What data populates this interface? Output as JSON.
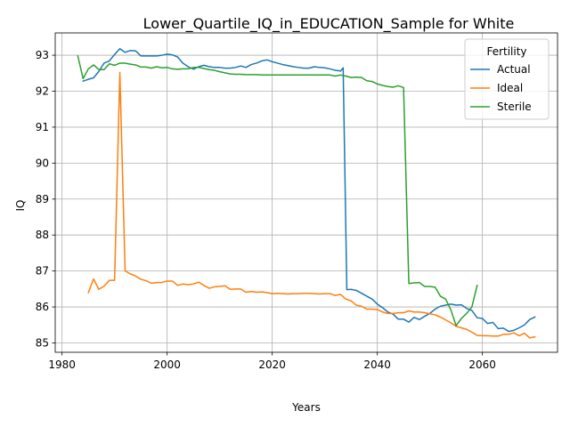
{
  "chart_data": {
    "type": "line",
    "title": "Lower_Quartile_IQ_in_EDUCATION_Sample for White",
    "xlabel": "Years",
    "ylabel": "IQ",
    "xlim": [
      1978.7,
      2074.3
    ],
    "ylim": [
      84.74,
      93.62
    ],
    "xticks": [
      1980,
      2000,
      2020,
      2040,
      2060
    ],
    "yticks": [
      85,
      86,
      87,
      88,
      89,
      90,
      91,
      92,
      93
    ],
    "grid": true,
    "legend": {
      "title": "Fertility",
      "placement": "top-right"
    },
    "series": [
      {
        "name": "Actual",
        "color": "#1f77b4",
        "points": [
          [
            1984,
            92.28
          ],
          [
            1985,
            92.33
          ],
          [
            1986,
            92.37
          ],
          [
            1987,
            92.55
          ],
          [
            1988,
            92.78
          ],
          [
            1989,
            92.84
          ],
          [
            1990,
            93.02
          ],
          [
            1991,
            93.18
          ],
          [
            1992,
            93.08
          ],
          [
            1993,
            93.13
          ],
          [
            1994,
            93.12
          ],
          [
            1995,
            92.98
          ],
          [
            1996,
            92.98
          ],
          [
            1997,
            92.98
          ],
          [
            1998,
            92.98
          ],
          [
            1999,
            93.0
          ],
          [
            2000,
            93.03
          ],
          [
            2001,
            93.01
          ],
          [
            2002,
            92.95
          ],
          [
            2003,
            92.78
          ],
          [
            2004,
            92.68
          ],
          [
            2005,
            92.61
          ],
          [
            2006,
            92.68
          ],
          [
            2007,
            92.72
          ],
          [
            2008,
            92.68
          ],
          [
            2009,
            92.66
          ],
          [
            2010,
            92.66
          ],
          [
            2011,
            92.64
          ],
          [
            2012,
            92.64
          ],
          [
            2013,
            92.66
          ],
          [
            2014,
            92.7
          ],
          [
            2015,
            92.66
          ],
          [
            2016,
            92.74
          ],
          [
            2017,
            92.78
          ],
          [
            2018,
            92.84
          ],
          [
            2019,
            92.87
          ],
          [
            2020,
            92.82
          ],
          [
            2021,
            92.78
          ],
          [
            2022,
            92.74
          ],
          [
            2023,
            92.71
          ],
          [
            2024,
            92.68
          ],
          [
            2025,
            92.66
          ],
          [
            2026,
            92.64
          ],
          [
            2027,
            92.64
          ],
          [
            2028,
            92.68
          ],
          [
            2029,
            92.66
          ],
          [
            2030,
            92.65
          ],
          [
            2031,
            92.62
          ],
          [
            2032,
            92.58
          ],
          [
            2033,
            92.56
          ],
          [
            2033.5,
            92.65
          ],
          [
            2034.2,
            86.48
          ],
          [
            2035,
            86.49
          ],
          [
            2036,
            86.46
          ],
          [
            2037,
            86.38
          ],
          [
            2038,
            86.3
          ],
          [
            2039,
            86.22
          ],
          [
            2040,
            86.08
          ],
          [
            2041,
            85.98
          ],
          [
            2042,
            85.86
          ],
          [
            2043,
            85.8
          ],
          [
            2044,
            85.66
          ],
          [
            2045,
            85.66
          ],
          [
            2046,
            85.58
          ],
          [
            2047,
            85.71
          ],
          [
            2048,
            85.65
          ],
          [
            2049,
            85.74
          ],
          [
            2050,
            85.82
          ],
          [
            2051,
            85.94
          ],
          [
            2052,
            86.02
          ],
          [
            2053,
            86.05
          ],
          [
            2054,
            86.08
          ],
          [
            2055,
            86.05
          ],
          [
            2056,
            86.06
          ],
          [
            2057,
            85.96
          ],
          [
            2058,
            85.9
          ],
          [
            2059,
            85.7
          ],
          [
            2060,
            85.68
          ],
          [
            2061,
            85.54
          ],
          [
            2062,
            85.57
          ],
          [
            2063,
            85.4
          ],
          [
            2064,
            85.41
          ],
          [
            2065,
            85.32
          ],
          [
            2066,
            85.35
          ],
          [
            2067,
            85.42
          ],
          [
            2068,
            85.5
          ],
          [
            2069,
            85.65
          ],
          [
            2070,
            85.72
          ]
        ]
      },
      {
        "name": "Ideal",
        "color": "#ff7f0e",
        "points": [
          [
            1985,
            86.4
          ],
          [
            1986,
            86.78
          ],
          [
            1987,
            86.49
          ],
          [
            1988,
            86.58
          ],
          [
            1989,
            86.74
          ],
          [
            1990,
            86.74
          ],
          [
            1991,
            92.52
          ],
          [
            1992,
            87.0
          ],
          [
            1993,
            86.92
          ],
          [
            1994,
            86.86
          ],
          [
            1995,
            86.77
          ],
          [
            1996,
            86.73
          ],
          [
            1997,
            86.66
          ],
          [
            1998,
            86.68
          ],
          [
            1999,
            86.68
          ],
          [
            2000,
            86.72
          ],
          [
            2001,
            86.72
          ],
          [
            2002,
            86.6
          ],
          [
            2003,
            86.64
          ],
          [
            2004,
            86.62
          ],
          [
            2005,
            86.64
          ],
          [
            2006,
            86.69
          ],
          [
            2007,
            86.6
          ],
          [
            2008,
            86.52
          ],
          [
            2009,
            86.56
          ],
          [
            2010,
            86.57
          ],
          [
            2011,
            86.59
          ],
          [
            2012,
            86.49
          ],
          [
            2013,
            86.5
          ],
          [
            2014,
            86.5
          ],
          [
            2015,
            86.41
          ],
          [
            2016,
            86.43
          ],
          [
            2017,
            86.41
          ],
          [
            2018,
            86.42
          ],
          [
            2019,
            86.4
          ],
          [
            2020,
            86.37
          ],
          [
            2021,
            86.38
          ],
          [
            2022,
            86.37
          ],
          [
            2023,
            86.36
          ],
          [
            2024,
            86.37
          ],
          [
            2025,
            86.37
          ],
          [
            2026,
            86.38
          ],
          [
            2027,
            86.38
          ],
          [
            2028,
            86.37
          ],
          [
            2029,
            86.36
          ],
          [
            2030,
            86.37
          ],
          [
            2031,
            86.37
          ],
          [
            2032,
            86.32
          ],
          [
            2033,
            86.35
          ],
          [
            2034,
            86.22
          ],
          [
            2035,
            86.17
          ],
          [
            2036,
            86.05
          ],
          [
            2037,
            86.02
          ],
          [
            2038,
            85.94
          ],
          [
            2039,
            85.94
          ],
          [
            2040,
            85.93
          ],
          [
            2041,
            85.86
          ],
          [
            2042,
            85.82
          ],
          [
            2043,
            85.82
          ],
          [
            2044,
            85.84
          ],
          [
            2045,
            85.84
          ],
          [
            2046,
            85.89
          ],
          [
            2047,
            85.86
          ],
          [
            2048,
            85.86
          ],
          [
            2049,
            85.84
          ],
          [
            2050,
            85.81
          ],
          [
            2051,
            85.78
          ],
          [
            2052,
            85.72
          ],
          [
            2053,
            85.64
          ],
          [
            2054,
            85.56
          ],
          [
            2055,
            85.46
          ],
          [
            2056,
            85.42
          ],
          [
            2057,
            85.38
          ],
          [
            2058,
            85.3
          ],
          [
            2059,
            85.21
          ],
          [
            2060,
            85.2
          ],
          [
            2061,
            85.2
          ],
          [
            2062,
            85.19
          ],
          [
            2063,
            85.19
          ],
          [
            2064,
            85.24
          ],
          [
            2065,
            85.24
          ],
          [
            2066,
            85.28
          ],
          [
            2067,
            85.2
          ],
          [
            2068,
            85.27
          ],
          [
            2069,
            85.14
          ],
          [
            2070,
            85.17
          ]
        ]
      },
      {
        "name": "Sterile",
        "color": "#2ca02c",
        "points": [
          [
            1983,
            92.98
          ],
          [
            1984,
            92.35
          ],
          [
            1985,
            92.62
          ],
          [
            1986,
            92.73
          ],
          [
            1987,
            92.6
          ],
          [
            1988,
            92.6
          ],
          [
            1989,
            92.76
          ],
          [
            1990,
            92.72
          ],
          [
            1991,
            92.78
          ],
          [
            1992,
            92.78
          ],
          [
            1993,
            92.75
          ],
          [
            1994,
            92.73
          ],
          [
            1995,
            92.67
          ],
          [
            1996,
            92.67
          ],
          [
            1997,
            92.64
          ],
          [
            1998,
            92.68
          ],
          [
            1999,
            92.65
          ],
          [
            2000,
            92.66
          ],
          [
            2001,
            92.62
          ],
          [
            2002,
            92.61
          ],
          [
            2003,
            92.62
          ],
          [
            2004,
            92.62
          ],
          [
            2005,
            92.66
          ],
          [
            2006,
            92.66
          ],
          [
            2007,
            92.63
          ],
          [
            2008,
            92.6
          ],
          [
            2009,
            92.58
          ],
          [
            2010,
            92.54
          ],
          [
            2011,
            92.51
          ],
          [
            2012,
            92.48
          ],
          [
            2013,
            92.47
          ],
          [
            2014,
            92.47
          ],
          [
            2015,
            92.46
          ],
          [
            2016,
            92.46
          ],
          [
            2017,
            92.46
          ],
          [
            2018,
            92.45
          ],
          [
            2019,
            92.45
          ],
          [
            2020,
            92.45
          ],
          [
            2021,
            92.45
          ],
          [
            2022,
            92.45
          ],
          [
            2023,
            92.45
          ],
          [
            2024,
            92.45
          ],
          [
            2025,
            92.45
          ],
          [
            2026,
            92.45
          ],
          [
            2027,
            92.45
          ],
          [
            2028,
            92.45
          ],
          [
            2029,
            92.45
          ],
          [
            2030,
            92.45
          ],
          [
            2031,
            92.45
          ],
          [
            2032,
            92.42
          ],
          [
            2033,
            92.45
          ],
          [
            2034,
            92.42
          ],
          [
            2035,
            92.38
          ],
          [
            2036,
            92.39
          ],
          [
            2037,
            92.38
          ],
          [
            2038,
            92.29
          ],
          [
            2039,
            92.27
          ],
          [
            2040,
            92.2
          ],
          [
            2041,
            92.16
          ],
          [
            2042,
            92.13
          ],
          [
            2043,
            92.11
          ],
          [
            2044,
            92.15
          ],
          [
            2045,
            92.1
          ],
          [
            2046,
            86.65
          ],
          [
            2047,
            86.67
          ],
          [
            2048,
            86.68
          ],
          [
            2049,
            86.57
          ],
          [
            2050,
            86.57
          ],
          [
            2051,
            86.55
          ],
          [
            2052,
            86.3
          ],
          [
            2053,
            86.22
          ],
          [
            2054,
            85.92
          ],
          [
            2055,
            85.48
          ],
          [
            2056,
            85.68
          ],
          [
            2057,
            85.82
          ],
          [
            2058,
            86.0
          ],
          [
            2059,
            86.6
          ]
        ]
      }
    ]
  }
}
